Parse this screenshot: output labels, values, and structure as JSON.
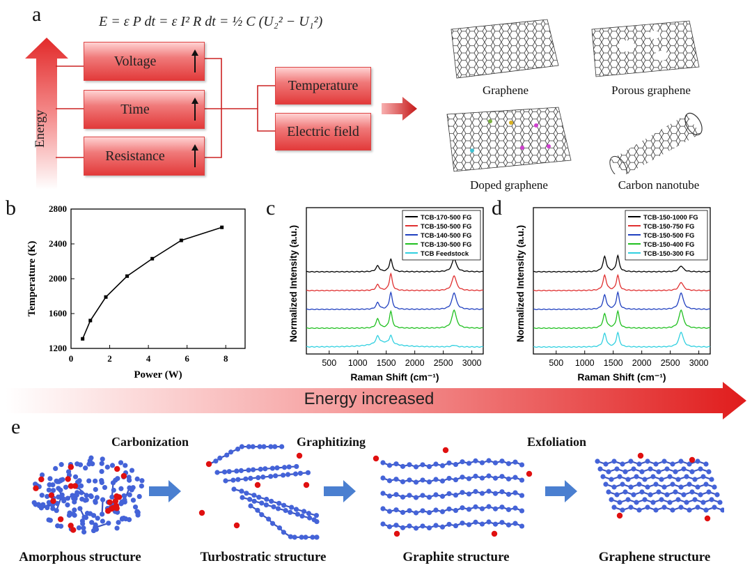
{
  "panel_a": {
    "letter": "a",
    "equation": "E = ε P dt = ε I² R dt = ½ C (U₂² − U₁²)",
    "energy_label": "Energy",
    "factors": [
      "Voltage",
      "Time",
      "Resistance"
    ],
    "outputs": [
      "Temperature",
      "Electric field"
    ],
    "products": [
      "Graphene",
      "Porous graphene",
      "Doped graphene",
      "Carbon nanotube"
    ]
  },
  "panel_b": {
    "letter": "b"
  },
  "panel_c": {
    "letter": "c"
  },
  "panel_d": {
    "letter": "d"
  },
  "banner": {
    "label": "Energy increased"
  },
  "panel_e": {
    "letter": "e",
    "processes": [
      "Carbonization",
      "Graphitizing",
      "Exfoliation"
    ],
    "structures": [
      "Amorphous structure",
      "Turbostratic structure",
      "Graphite structure",
      "Graphene structure"
    ]
  },
  "chart_data": [
    {
      "type": "line",
      "title": "",
      "xlabel": "Power (W)",
      "ylabel": "Temperature (K)",
      "xlim": [
        0,
        9
      ],
      "ylim": [
        1200,
        2800
      ],
      "xticks": [
        0,
        2,
        4,
        6,
        8
      ],
      "yticks": [
        1200,
        1600,
        2000,
        2400,
        2800
      ],
      "x": [
        0.6,
        1.0,
        1.8,
        2.9,
        4.2,
        5.7,
        7.8
      ],
      "y": [
        1310,
        1520,
        1790,
        2030,
        2230,
        2440,
        2590
      ]
    },
    {
      "type": "line",
      "xlabel": "Raman Shift (cm⁻¹)",
      "ylabel": "Normalized Intensity (a.u.)",
      "xlim": [
        100,
        3200
      ],
      "xticks": [
        500,
        1000,
        1500,
        2000,
        2500,
        3000
      ],
      "peaks_cm": [
        1350,
        1580,
        2690
      ],
      "series": [
        {
          "name": "TCB-170-500 FG",
          "color": "#000000",
          "offset": 4,
          "D": 0.35,
          "G": 0.75,
          "2D": 0.8
        },
        {
          "name": "TCB-150-500 FG",
          "color": "#e03030",
          "offset": 3,
          "D": 0.35,
          "G": 1.0,
          "2D": 0.9
        },
        {
          "name": "TCB-140-500 FG",
          "color": "#2040c0",
          "offset": 2,
          "D": 0.4,
          "G": 1.0,
          "2D": 1.0
        },
        {
          "name": "TCB-130-500 FG",
          "color": "#20c020",
          "offset": 1,
          "D": 0.55,
          "G": 1.0,
          "2D": 1.1
        },
        {
          "name": "TCB Feedstock",
          "color": "#30d0e0",
          "offset": 0,
          "D": 0.45,
          "G": 0.5,
          "2D": 0.1
        }
      ]
    },
    {
      "type": "line",
      "xlabel": "Raman Shift (cm⁻¹)",
      "ylabel": "Normalized Intensity (a.u.)",
      "xlim": [
        100,
        3200
      ],
      "xticks": [
        500,
        1000,
        1500,
        2000,
        2500,
        3000
      ],
      "peaks_cm": [
        1350,
        1580,
        2690
      ],
      "series": [
        {
          "name": "TCB-150-1000 FG",
          "color": "#000000",
          "offset": 4,
          "D": 0.9,
          "G": 0.95,
          "2D": 0.35
        },
        {
          "name": "TCB-150-750 FG",
          "color": "#e03030",
          "offset": 3,
          "D": 0.9,
          "G": 0.9,
          "2D": 0.5
        },
        {
          "name": "TCB-150-500 FG",
          "color": "#2040c0",
          "offset": 2,
          "D": 0.85,
          "G": 1.0,
          "2D": 1.0
        },
        {
          "name": "TCB-150-400 FG",
          "color": "#20c020",
          "offset": 1,
          "D": 0.85,
          "G": 1.0,
          "2D": 1.1
        },
        {
          "name": "TCB-150-300 FG",
          "color": "#30d0e0",
          "offset": 0,
          "D": 0.8,
          "G": 0.85,
          "2D": 0.9
        }
      ]
    }
  ]
}
